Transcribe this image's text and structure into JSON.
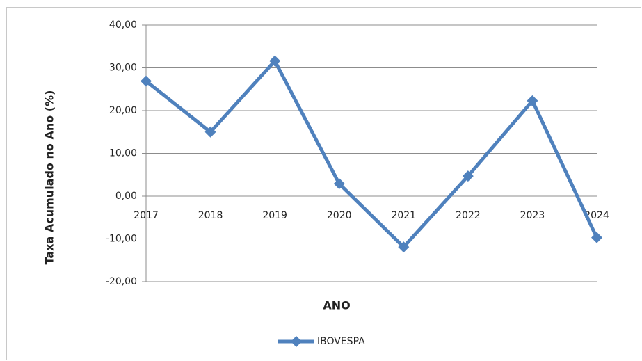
{
  "chart_data": {
    "type": "line",
    "x_label": "ANO",
    "y_label": "Taxa Acumulado no Ano (%)",
    "categories": [
      "2017",
      "2018",
      "2019",
      "2020",
      "2021",
      "2022",
      "2023",
      "2024"
    ],
    "series": [
      {
        "name": "IBOVESPA",
        "color": "#4f81bd",
        "values": [
          26.9,
          15.0,
          31.6,
          2.9,
          -11.9,
          4.7,
          22.3,
          -9.7
        ]
      }
    ],
    "ylim": [
      -20,
      40
    ],
    "yticks": [
      {
        "value": -20,
        "label": "-20,00"
      },
      {
        "value": -10,
        "label": "-10,00"
      },
      {
        "value": 0,
        "label": "0,00"
      },
      {
        "value": 10,
        "label": "10,00"
      },
      {
        "value": 20,
        "label": "20,00"
      },
      {
        "value": 30,
        "label": "30,00"
      },
      {
        "value": 40,
        "label": "40,00"
      }
    ],
    "grid": true,
    "legend": "bottom"
  }
}
